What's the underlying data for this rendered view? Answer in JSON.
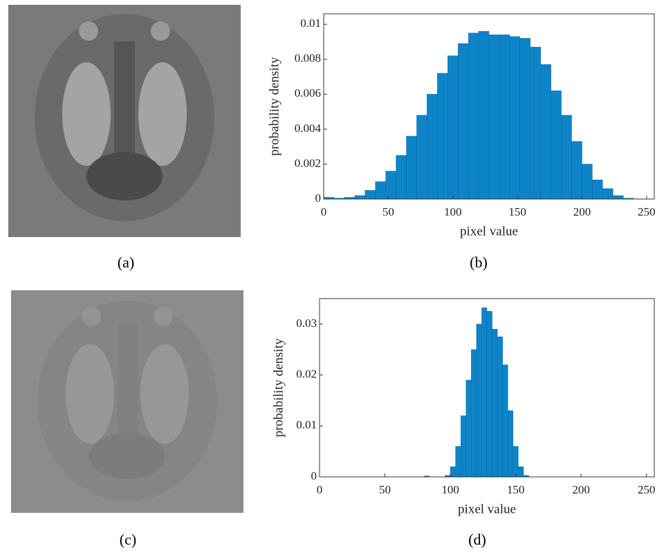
{
  "figure": {
    "captions": [
      "(a)",
      "(b)",
      "(c)",
      "(d)"
    ]
  },
  "chart_data": [
    {
      "type": "histogram",
      "xlabel": "pixel value",
      "ylabel": "probability density",
      "color": "#0e84c8",
      "grid": false,
      "bins": [
        0,
        8,
        16,
        24,
        32,
        40,
        48,
        56,
        64,
        72,
        80,
        88,
        96,
        104,
        112,
        120,
        128,
        136,
        144,
        152,
        160,
        168,
        176,
        184,
        192,
        200,
        208,
        216,
        224,
        232,
        240,
        248,
        256
      ],
      "values": [
        0.0001,
        5e-05,
        0.0001,
        0.0002,
        0.0005,
        0.001,
        0.0016,
        0.0025,
        0.0036,
        0.0048,
        0.006,
        0.0072,
        0.0082,
        0.0089,
        0.0095,
        0.0096,
        0.0094,
        0.0094,
        0.0093,
        0.0092,
        0.0087,
        0.0077,
        0.0062,
        0.0048,
        0.0033,
        0.002,
        0.0011,
        0.0006,
        0.0002,
        5e-05,
        0,
        0
      ],
      "xlim": [
        0,
        256
      ],
      "xticks": [
        0,
        50,
        100,
        150,
        200,
        250
      ],
      "ylim": [
        0,
        0.0106
      ],
      "yticks": [
        0,
        0.002,
        0.004,
        0.006,
        0.008,
        0.01
      ]
    },
    {
      "type": "histogram",
      "xlabel": "pixel value",
      "ylabel": "probability density",
      "color": "#0e84c8",
      "grid": false,
      "bins": [
        0,
        4,
        8,
        12,
        16,
        20,
        24,
        28,
        32,
        36,
        40,
        44,
        48,
        52,
        56,
        60,
        64,
        68,
        72,
        76,
        80,
        84,
        88,
        92,
        96,
        100,
        104,
        108,
        112,
        116,
        120,
        124,
        128,
        132,
        136,
        140,
        144,
        148,
        152,
        156,
        160,
        164,
        168,
        172,
        176,
        180,
        184,
        188,
        192,
        196,
        200,
        204,
        208,
        212,
        216,
        220,
        224,
        228,
        232,
        236,
        240,
        244,
        248,
        252,
        256
      ],
      "values": [
        0,
        0,
        0,
        0,
        0,
        0,
        0,
        0,
        0,
        0,
        0,
        0,
        0,
        0,
        0,
        0,
        0,
        0,
        0,
        0,
        0.0002,
        0,
        0,
        0,
        0.0003,
        0.002,
        0.006,
        0.012,
        0.019,
        0.025,
        0.03,
        0.0332,
        0.0325,
        0.029,
        0.0275,
        0.022,
        0.013,
        0.006,
        0.002,
        0.0003,
        0,
        0,
        0,
        0,
        0,
        0,
        0,
        0,
        0,
        0,
        0,
        0,
        0,
        0,
        0,
        0,
        0,
        0,
        0,
        0,
        0,
        0,
        0,
        0
      ],
      "xlim": [
        0,
        256
      ],
      "xticks": [
        0,
        50,
        100,
        150,
        200,
        250
      ],
      "ylim": [
        0,
        0.035
      ],
      "yticks": [
        0,
        0.01,
        0.02,
        0.03
      ]
    }
  ]
}
